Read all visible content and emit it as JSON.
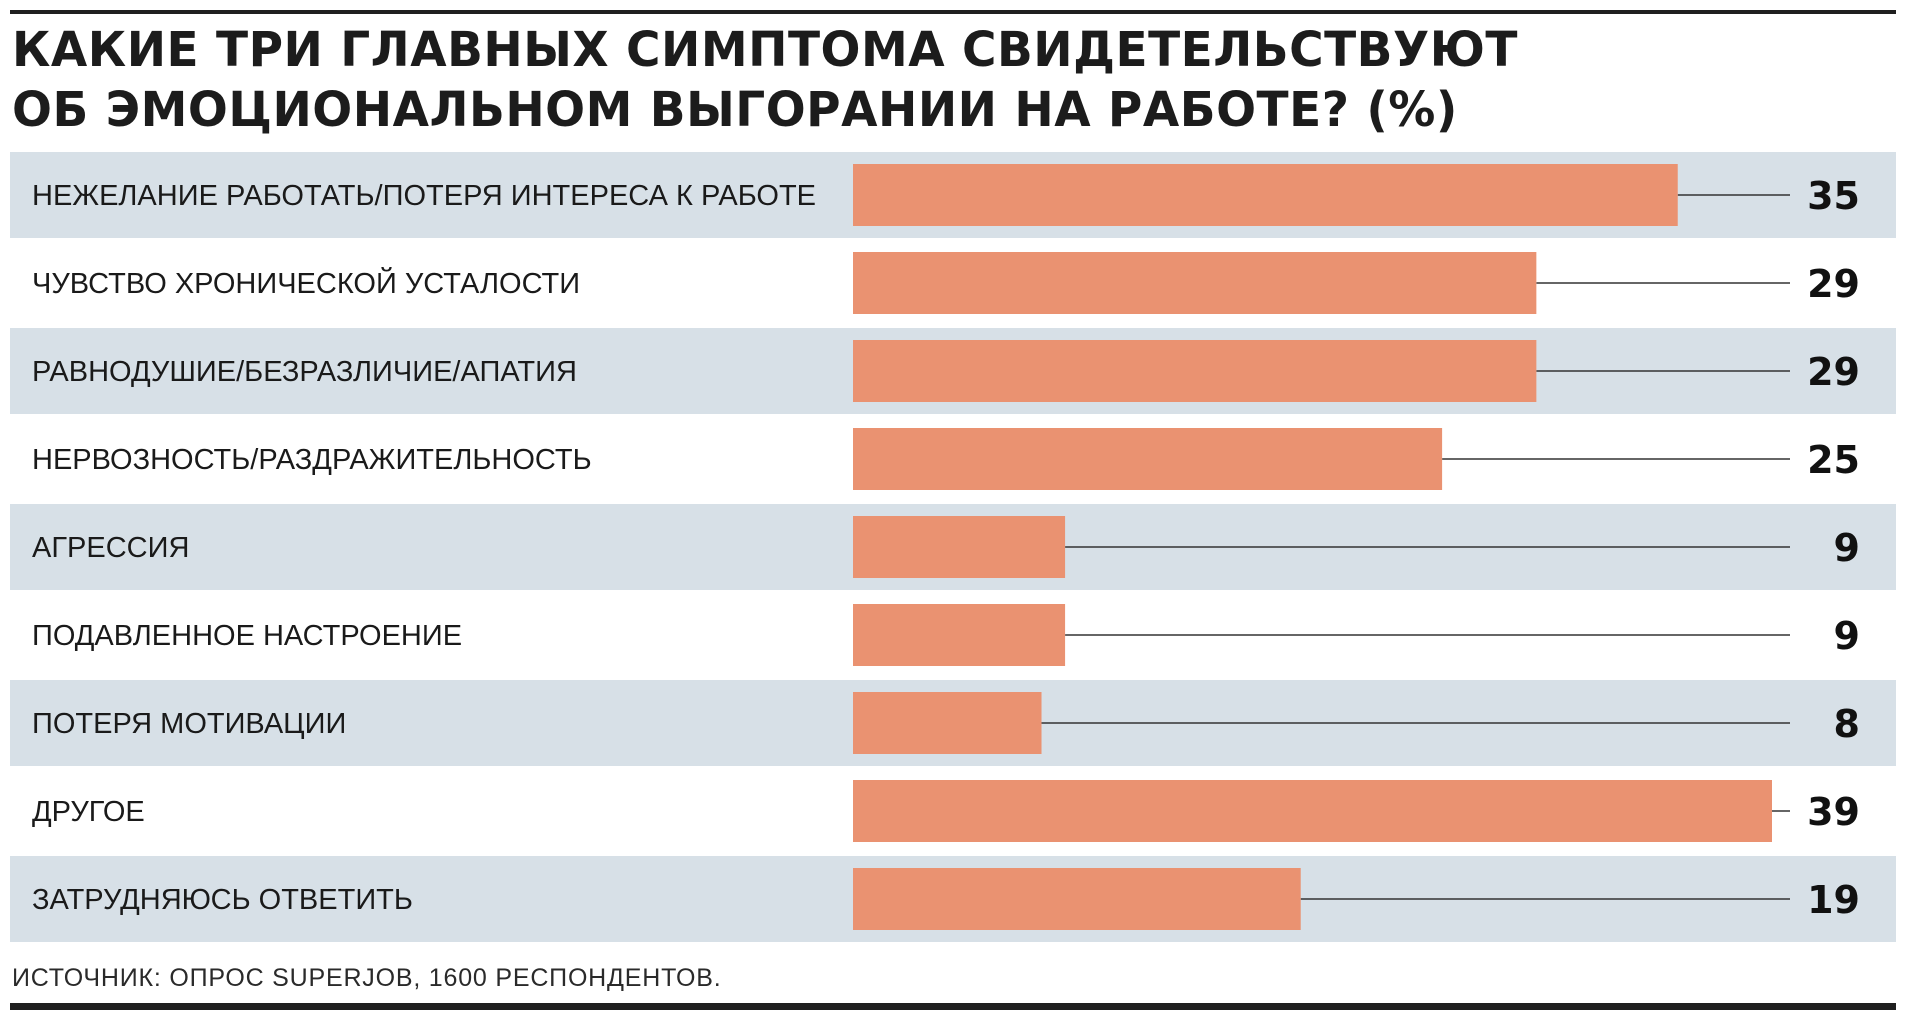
{
  "title": {
    "line1": "КАКИЕ ТРИ ГЛАВНЫХ СИМПТОМА СВИДЕТЕЛЬСТВУЮТ",
    "line2": "ОБ ЭМОЦИОНАЛЬНОМ ВЫГОРАНИИ НА РАБОТЕ? (%)"
  },
  "source": "ИСТОЧНИК: ОПРОС SUPERJOB, 1600 РЕСПОНДЕНТОВ.",
  "colors": {
    "bar": "#EA9271",
    "band": "#D7E0E7",
    "leader": "#333333",
    "text": "#1a1a1a"
  },
  "chart_data": {
    "type": "bar",
    "orientation": "horizontal",
    "categories": [
      "НЕЖЕЛАНИЕ РАБОТАТЬ/ПОТЕРЯ ИНТЕРЕСА К РАБОТЕ",
      "ЧУВСТВО ХРОНИЧЕСКОЙ УСТАЛОСТИ",
      "РАВНОДУШИЕ/БЕЗРАЗЛИЧИЕ/АПАТИЯ",
      "НЕРВОЗНОСТЬ/РАЗДРАЖИТЕЛЬНОСТЬ",
      "АГРЕССИЯ",
      "ПОДАВЛЕННОЕ НАСТРОЕНИЕ",
      "ПОТЕРЯ МОТИВАЦИИ",
      "ДРУГОЕ",
      "ЗАТРУДНЯЮСЬ ОТВЕТИТЬ"
    ],
    "values": [
      35,
      29,
      29,
      25,
      9,
      9,
      8,
      39,
      19
    ],
    "xlim": [
      0,
      39
    ],
    "grid": false,
    "legend": "none",
    "alternating_row_bands": true,
    "value_labels": true
  }
}
